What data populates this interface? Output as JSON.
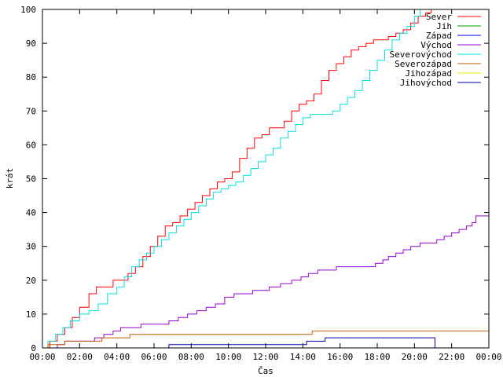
{
  "chart_data": {
    "type": "line",
    "xlabel": "Čas",
    "ylabel": "krát",
    "xlim": [
      0,
      24
    ],
    "ylim": [
      0,
      100
    ],
    "xticks": [
      {
        "v": 0,
        "label": "00:00"
      },
      {
        "v": 2,
        "label": "02:00"
      },
      {
        "v": 4,
        "label": "04:00"
      },
      {
        "v": 6,
        "label": "06:00"
      },
      {
        "v": 8,
        "label": "08:00"
      },
      {
        "v": 10,
        "label": "10:00"
      },
      {
        "v": 12,
        "label": "12:00"
      },
      {
        "v": 14,
        "label": "14:00"
      },
      {
        "v": 16,
        "label": "16:00"
      },
      {
        "v": 18,
        "label": "18:00"
      },
      {
        "v": 20,
        "label": "20:00"
      },
      {
        "v": 22,
        "label": "22:00"
      },
      {
        "v": 24,
        "label": "00:00"
      }
    ],
    "yticks": [
      0,
      10,
      20,
      30,
      40,
      50,
      60,
      70,
      80,
      90,
      100
    ],
    "grid": false,
    "legend": "top-right",
    "series": [
      {
        "name": "Sever",
        "color": "#ff0000",
        "x": [
          0,
          0.4,
          0.8,
          1.2,
          1.6,
          2.0,
          2.5,
          2.9,
          3.4,
          3.8,
          4.2,
          4.6,
          5.0,
          5.4,
          5.8,
          6.2,
          6.6,
          7.0,
          7.4,
          7.8,
          8.2,
          8.6,
          9.0,
          9.4,
          9.8,
          10.2,
          10.6,
          11.0,
          11.4,
          11.8,
          12.2,
          12.6,
          13.0,
          13.4,
          13.8,
          14.2,
          14.6,
          15.0,
          15.4,
          15.8,
          16.2,
          16.6,
          17.0,
          17.4,
          17.8,
          18.2,
          18.6,
          19.0,
          19.4,
          19.8,
          20.2,
          20.6,
          20.9
        ],
        "y": [
          0,
          2,
          4,
          6,
          9,
          12,
          16,
          18,
          18,
          20,
          20,
          22,
          24,
          27,
          30,
          33,
          36,
          37,
          39,
          41,
          43,
          45,
          47,
          49,
          50,
          52,
          56,
          59,
          62,
          63,
          65,
          65,
          67,
          70,
          72,
          73,
          75,
          79,
          82,
          84,
          86,
          88,
          89,
          90,
          91,
          91,
          92,
          93,
          94,
          96,
          98,
          99,
          100
        ]
      },
      {
        "name": "Jih",
        "color": "#00a000",
        "x": [],
        "y": []
      },
      {
        "name": "Západ",
        "color": "#0000ff",
        "x": [],
        "y": []
      },
      {
        "name": "Východ",
        "color": "#9500d3",
        "x": [
          0,
          0.8,
          1.2,
          1.9,
          2.8,
          3.3,
          3.8,
          4.2,
          5.3,
          6.3,
          6.8,
          7.3,
          7.8,
          8.3,
          8.8,
          9.3,
          9.8,
          10.3,
          11.3,
          12.2,
          12.8,
          13.4,
          13.9,
          14.3,
          14.8,
          15.8,
          16.8,
          17.6,
          17.9,
          18.3,
          18.6,
          19.0,
          19.4,
          19.8,
          20.3,
          20.8,
          21.2,
          21.6,
          22.0,
          22.4,
          22.8,
          23.1,
          23.3,
          24.0
        ],
        "y": [
          0,
          1,
          2,
          2,
          3,
          4,
          5,
          6,
          7,
          7,
          8,
          9,
          10,
          11,
          12,
          13,
          15,
          16,
          17,
          18,
          19,
          20,
          21,
          22,
          23,
          24,
          24,
          24,
          25,
          26,
          27,
          28,
          29,
          30,
          31,
          31,
          32,
          33,
          34,
          35,
          36,
          37,
          39,
          40
        ]
      },
      {
        "name": "Severovýchod",
        "color": "#00e0e0",
        "x": [
          0,
          0.3,
          0.7,
          1.1,
          1.5,
          2.0,
          2.5,
          3.0,
          3.5,
          4.0,
          4.4,
          4.8,
          5.2,
          5.6,
          6.0,
          6.4,
          6.8,
          7.2,
          7.6,
          8.0,
          8.4,
          8.8,
          9.2,
          9.6,
          10.0,
          10.4,
          10.8,
          11.2,
          11.6,
          12.0,
          12.4,
          12.8,
          13.2,
          13.6,
          14.0,
          14.4,
          14.8,
          15.2,
          15.6,
          16.0,
          16.4,
          16.8,
          17.2,
          17.6,
          18.0,
          18.4,
          18.8,
          19.2,
          19.6,
          20.0,
          20.3
        ],
        "y": [
          0,
          2,
          4,
          6,
          8,
          10,
          11,
          13,
          16,
          18,
          21,
          24,
          26,
          28,
          30,
          32,
          34,
          36,
          38,
          40,
          42,
          44,
          46,
          47,
          48,
          49,
          51,
          53,
          55,
          57,
          59,
          62,
          64,
          66,
          68,
          69,
          69,
          69,
          70,
          72,
          74,
          76,
          79,
          82,
          85,
          88,
          91,
          93,
          95,
          98,
          100
        ]
      },
      {
        "name": "Severozápad",
        "color": "#c06000",
        "x": [
          0,
          0.3,
          1.2,
          3.2,
          4.7,
          14.5,
          24.0
        ],
        "y": [
          0,
          1,
          2,
          3,
          4,
          5,
          5
        ]
      },
      {
        "name": "Jihozápad",
        "color": "#e8e800",
        "x": [],
        "y": []
      },
      {
        "name": "Jihovýchod",
        "color": "#0000a0",
        "x": [
          0,
          6.8,
          14.2,
          15.2,
          21.0,
          21.1
        ],
        "y": [
          0,
          1,
          2,
          3,
          3,
          0
        ]
      }
    ]
  }
}
